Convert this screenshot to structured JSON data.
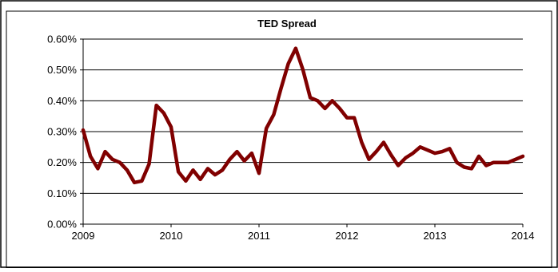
{
  "chart_data": {
    "type": "line",
    "title": "TED Spread",
    "xlabel": "",
    "ylabel": "",
    "x_ticks": [
      "2009",
      "2010",
      "2011",
      "2012",
      "2013",
      "2014"
    ],
    "y_ticks": [
      "0.00%",
      "0.10%",
      "0.20%",
      "0.30%",
      "0.40%",
      "0.50%",
      "0.60%"
    ],
    "xlim": [
      2009,
      2014
    ],
    "ylim": [
      0,
      0.6
    ],
    "grid": "horizontal",
    "legend": "none",
    "series": [
      {
        "color": "#800000",
        "x": [
          2009.0,
          2009.083,
          2009.167,
          2009.25,
          2009.333,
          2009.417,
          2009.5,
          2009.583,
          2009.667,
          2009.75,
          2009.833,
          2009.917,
          2010.0,
          2010.083,
          2010.167,
          2010.25,
          2010.333,
          2010.417,
          2010.5,
          2010.583,
          2010.667,
          2010.75,
          2010.833,
          2010.917,
          2011.0,
          2011.083,
          2011.167,
          2011.25,
          2011.333,
          2011.417,
          2011.5,
          2011.583,
          2011.667,
          2011.75,
          2011.833,
          2011.917,
          2012.0,
          2012.083,
          2012.167,
          2012.25,
          2012.333,
          2012.417,
          2012.5,
          2012.583,
          2012.667,
          2012.75,
          2012.833,
          2012.917,
          2013.0,
          2013.083,
          2013.167,
          2013.25,
          2013.333,
          2013.417,
          2013.5,
          2013.583,
          2013.667,
          2013.75,
          2013.833,
          2013.917,
          2014.0
        ],
        "y": [
          0.305,
          0.22,
          0.18,
          0.235,
          0.21,
          0.2,
          0.175,
          0.135,
          0.14,
          0.195,
          0.385,
          0.36,
          0.315,
          0.17,
          0.14,
          0.175,
          0.145,
          0.18,
          0.16,
          0.175,
          0.21,
          0.235,
          0.205,
          0.23,
          0.165,
          0.31,
          0.355,
          0.44,
          0.52,
          0.57,
          0.5,
          0.41,
          0.4,
          0.375,
          0.4,
          0.375,
          0.345,
          0.345,
          0.265,
          0.21,
          0.235,
          0.265,
          0.225,
          0.19,
          0.215,
          0.23,
          0.25,
          0.24,
          0.23,
          0.235,
          0.245,
          0.2,
          0.185,
          0.18,
          0.22,
          0.19,
          0.2,
          0.2,
          0.2,
          0.21,
          0.22
        ]
      }
    ]
  }
}
